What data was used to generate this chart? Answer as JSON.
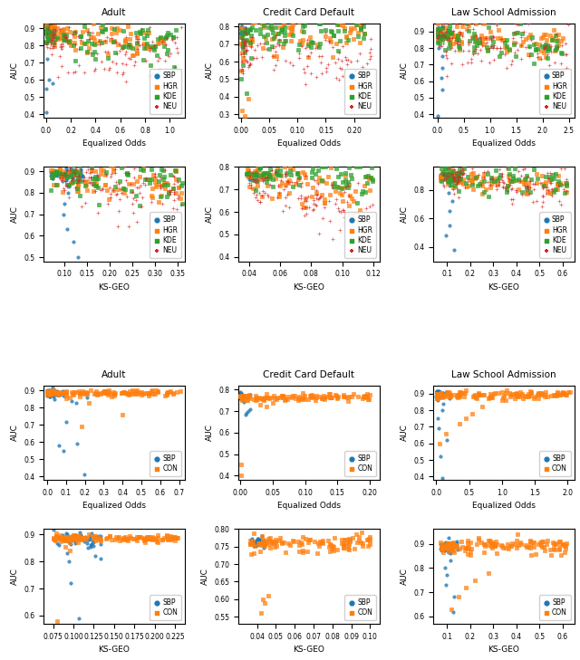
{
  "datasets": [
    "Adult",
    "Credit Card Default",
    "Law School Admission"
  ],
  "ds_keys": [
    "adult",
    "credit",
    "law"
  ],
  "methods_4": [
    "SBP",
    "HGR",
    "KDE",
    "NEU"
  ],
  "methods_2": [
    "SBP",
    "CON"
  ],
  "colors_4": [
    "#1f77b4",
    "#ff7f0e",
    "#2ca02c",
    "#d62728"
  ],
  "colors_2": [
    "#1f77b4",
    "#ff7f0e"
  ],
  "top_section": {
    "row0": {
      "xlabel": "Equalized Odds",
      "ylabel": "AUC",
      "adult": {
        "xlim": [
          -0.02,
          1.12
        ],
        "ylim": [
          0.38,
          0.93
        ],
        "xticks": [
          0.0,
          0.2,
          0.4,
          0.6,
          0.8,
          1.0
        ]
      },
      "credit": {
        "xlim": [
          -0.005,
          0.245
        ],
        "ylim": [
          0.28,
          0.82
        ],
        "xticks": [
          0.0,
          0.05,
          0.1,
          0.15,
          0.2
        ]
      },
      "law": {
        "xlim": [
          -0.08,
          2.6
        ],
        "ylim": [
          0.38,
          0.95
        ],
        "xticks": [
          0.0,
          0.5,
          1.0,
          1.5,
          2.0,
          2.5
        ]
      }
    },
    "row1": {
      "xlabel": "KS-GEO",
      "ylabel": "AUC",
      "adult": {
        "xlim": [
          0.055,
          0.365
        ],
        "ylim": [
          0.48,
          0.92
        ],
        "xticks": [
          0.1,
          0.15,
          0.2,
          0.25,
          0.3,
          0.35
        ]
      },
      "credit": {
        "xlim": [
          0.033,
          0.124
        ],
        "ylim": [
          0.38,
          0.8
        ],
        "xticks": [
          0.04,
          0.06,
          0.08,
          0.1,
          0.12
        ]
      },
      "law": {
        "xlim": [
          0.04,
          0.65
        ],
        "ylim": [
          0.3,
          0.96
        ],
        "xticks": [
          0.1,
          0.2,
          0.3,
          0.4,
          0.5,
          0.6
        ]
      }
    }
  },
  "bottom_section": {
    "row0": {
      "xlabel": "Equalized Odds",
      "ylabel": "AUC",
      "adult": {
        "xlim": [
          -0.02,
          0.73
        ],
        "ylim": [
          0.38,
          0.93
        ],
        "xticks": [
          0.0,
          0.1,
          0.2,
          0.3,
          0.4,
          0.5,
          0.6,
          0.7
        ]
      },
      "credit": {
        "xlim": [
          -0.003,
          0.215
        ],
        "ylim": [
          0.38,
          0.82
        ],
        "xticks": [
          0.0,
          0.05,
          0.1,
          0.15,
          0.2
        ]
      },
      "law": {
        "xlim": [
          -0.05,
          2.1
        ],
        "ylim": [
          0.38,
          0.95
        ],
        "xticks": [
          0.0,
          0.5,
          1.0,
          1.5,
          2.0
        ]
      }
    },
    "row1": {
      "xlabel": "KS-GEO",
      "ylabel": "AUC",
      "adult": {
        "xlim": [
          0.063,
          0.237
        ],
        "ylim": [
          0.57,
          0.92
        ],
        "xticks": [
          0.075,
          0.1,
          0.125,
          0.15,
          0.175,
          0.2,
          0.225
        ]
      },
      "credit": {
        "xlim": [
          0.03,
          0.105
        ],
        "ylim": [
          0.53,
          0.8
        ],
        "xticks": [
          0.04,
          0.05,
          0.06,
          0.07,
          0.08,
          0.09,
          0.1
        ]
      },
      "law": {
        "xlim": [
          0.04,
          0.65
        ],
        "ylim": [
          0.57,
          0.96
        ],
        "xticks": [
          0.1,
          0.2,
          0.3,
          0.4,
          0.5,
          0.6
        ]
      }
    }
  },
  "fig_width": 6.4,
  "fig_height": 7.29,
  "dpi": 100
}
